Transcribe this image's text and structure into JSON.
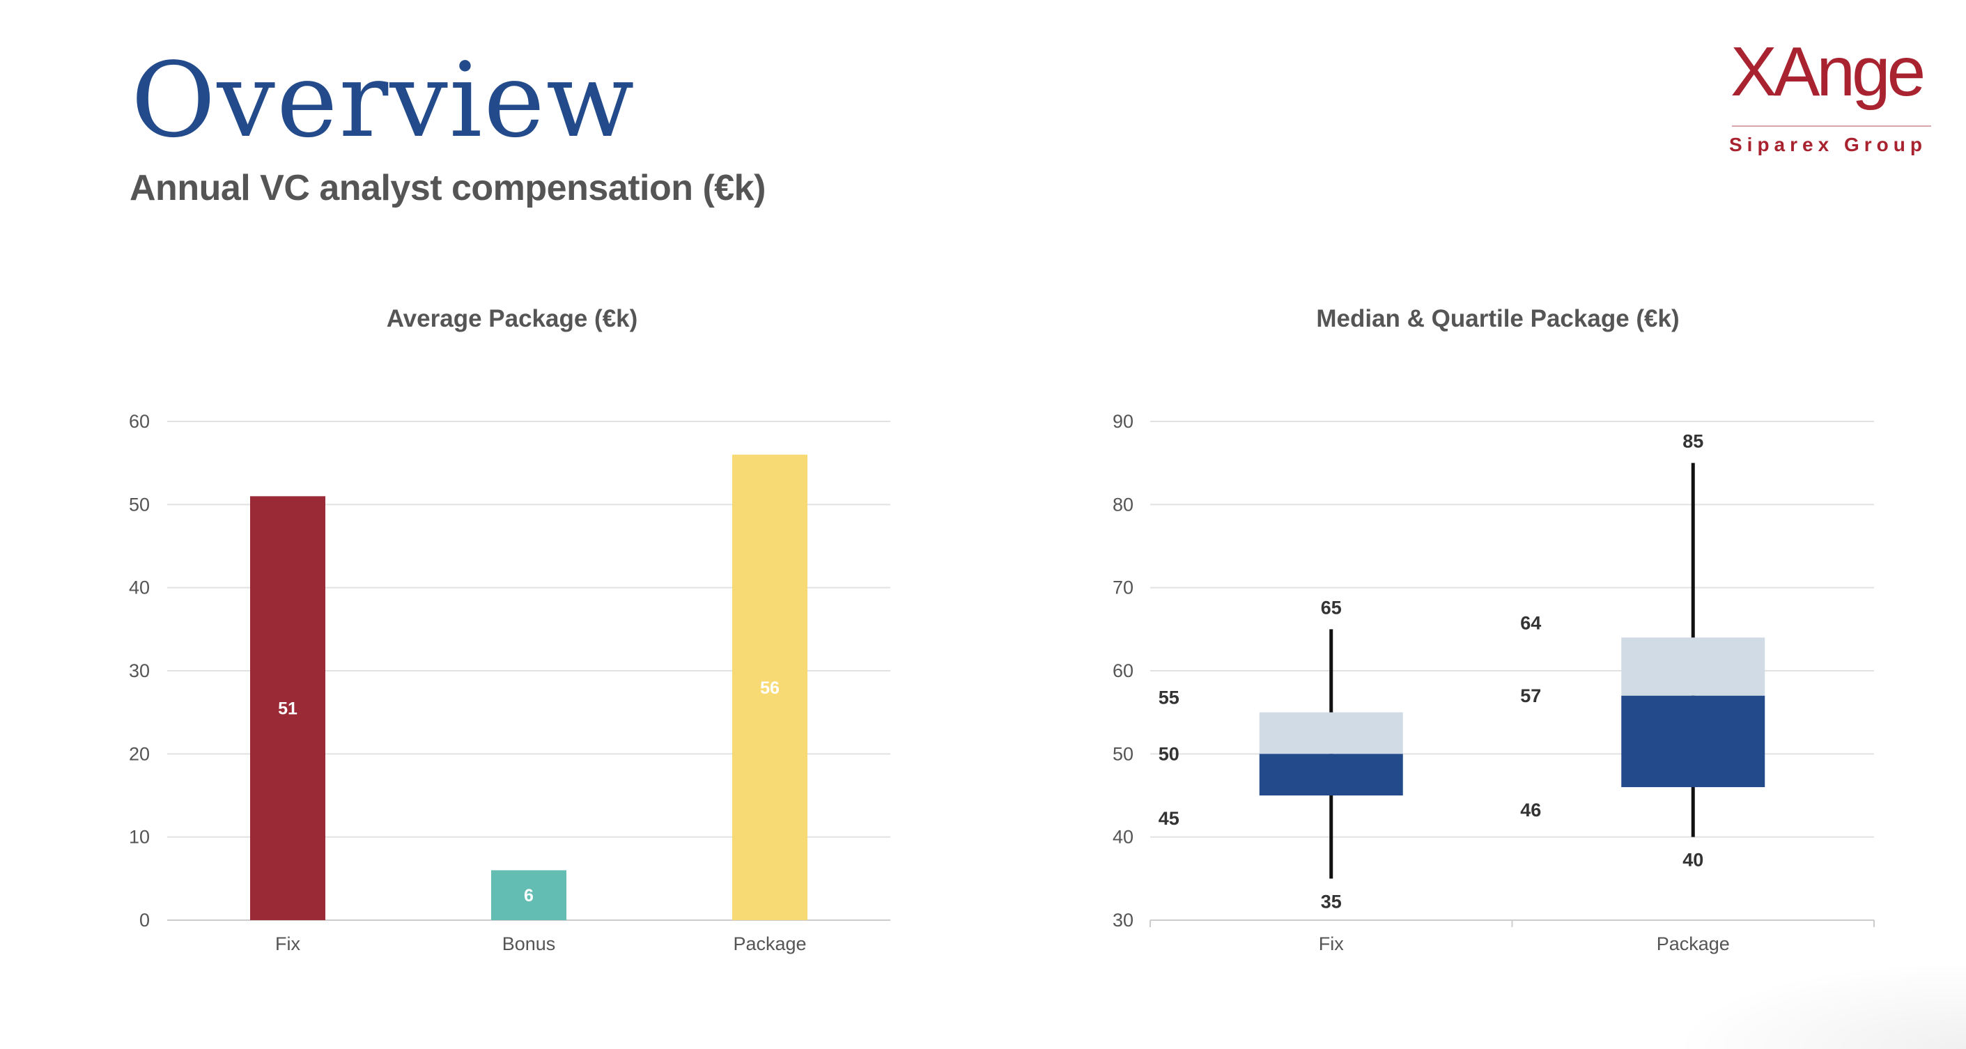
{
  "header": {
    "title": "Overview",
    "subtitle": "Annual VC analyst compensation (€k)"
  },
  "logo": {
    "name": "XAnge",
    "tagline": "Siparex Group",
    "color": "#a8232f"
  },
  "chart_data": [
    {
      "type": "bar",
      "title": "Average Package (€k)",
      "categories": [
        "Fix",
        "Bonus",
        "Package"
      ],
      "values": [
        51,
        6,
        56
      ],
      "colors": [
        "#9b2a37",
        "#63bdb2",
        "#f7da74"
      ],
      "ylim": [
        0,
        60
      ],
      "yticks": [
        0,
        10,
        20,
        30,
        40,
        50,
        60
      ],
      "grid": true,
      "xlabel": "",
      "ylabel": ""
    },
    {
      "type": "box",
      "title": "Median & Quartile Package (€k)",
      "categories": [
        "Fix",
        "Package"
      ],
      "series": [
        {
          "category": "Fix",
          "min": 35,
          "q1": 45,
          "median": 50,
          "q3": 55,
          "max": 65
        },
        {
          "category": "Package",
          "min": 40,
          "q1": 46,
          "median": 57,
          "q3": 64,
          "max": 85
        }
      ],
      "colors": {
        "lower_box": "#234b8b",
        "upper_box": "#d1dbe6",
        "whisker": "#111111"
      },
      "ylim": [
        30,
        90
      ],
      "yticks": [
        30,
        40,
        50,
        60,
        70,
        80,
        90
      ],
      "grid": true,
      "xlabel": "",
      "ylabel": ""
    }
  ]
}
